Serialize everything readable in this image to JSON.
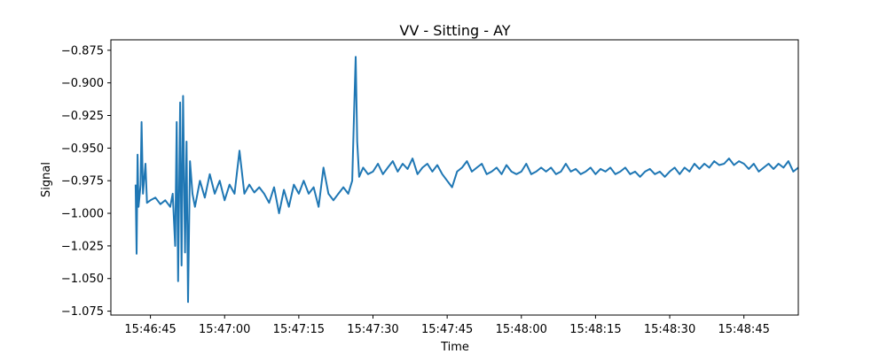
{
  "chart_data": {
    "type": "line",
    "title": "VV - Sitting - AY",
    "xlabel": "Time",
    "ylabel": "Signal",
    "xlim": [
      "15:46:37",
      "15:48:56"
    ],
    "ylim": [
      -1.078,
      -0.867
    ],
    "grid": false,
    "x_ticks": [
      "15:46:45",
      "15:47:00",
      "15:47:15",
      "15:47:30",
      "15:47:45",
      "15:48:00",
      "15:48:15",
      "15:48:30",
      "15:48:45"
    ],
    "y_ticks": [
      -0.875,
      -0.9,
      -0.925,
      -0.95,
      -0.975,
      -1.0,
      -1.025,
      -1.05,
      -1.075
    ],
    "y_tick_labels": [
      "−0.875",
      "−0.900",
      "−0.925",
      "−0.950",
      "−0.975",
      "−1.000",
      "−1.025",
      "−1.050",
      "−1.075"
    ],
    "series": [
      {
        "color": "#1f77b4",
        "points": [
          [
            "15:46:42.0",
            -0.978
          ],
          [
            "15:46:42.2",
            -1.031
          ],
          [
            "15:46:42.4",
            -0.955
          ],
          [
            "15:46:42.6",
            -0.995
          ],
          [
            "15:46:43.0",
            -0.978
          ],
          [
            "15:46:43.2",
            -0.93
          ],
          [
            "15:46:43.5",
            -0.985
          ],
          [
            "15:46:44.0",
            -0.962
          ],
          [
            "15:46:44.3",
            -0.992
          ],
          [
            "15:46:45.0",
            -0.99
          ],
          [
            "15:46:46.0",
            -0.988
          ],
          [
            "15:46:47.0",
            -0.993
          ],
          [
            "15:46:48.0",
            -0.99
          ],
          [
            "15:46:49.0",
            -0.995
          ],
          [
            "15:46:49.5",
            -0.985
          ],
          [
            "15:46:50.0",
            -1.025
          ],
          [
            "15:46:50.3",
            -0.93
          ],
          [
            "15:46:50.6",
            -1.052
          ],
          [
            "15:46:51.0",
            -0.915
          ],
          [
            "15:46:51.3",
            -1.04
          ],
          [
            "15:46:51.6",
            -0.91
          ],
          [
            "15:46:52.0",
            -1.03
          ],
          [
            "15:46:52.3",
            -0.945
          ],
          [
            "15:46:52.6",
            -1.068
          ],
          [
            "15:46:53.0",
            -0.96
          ],
          [
            "15:46:53.5",
            -0.985
          ],
          [
            "15:46:54.0",
            -0.995
          ],
          [
            "15:46:55.0",
            -0.975
          ],
          [
            "15:46:56.0",
            -0.988
          ],
          [
            "15:46:57.0",
            -0.97
          ],
          [
            "15:46:58.0",
            -0.985
          ],
          [
            "15:46:59.0",
            -0.975
          ],
          [
            "15:47:00.0",
            -0.99
          ],
          [
            "15:47:01.0",
            -0.978
          ],
          [
            "15:47:02.0",
            -0.985
          ],
          [
            "15:47:03.0",
            -0.952
          ],
          [
            "15:47:04.0",
            -0.985
          ],
          [
            "15:47:05.0",
            -0.978
          ],
          [
            "15:47:06.0",
            -0.984
          ],
          [
            "15:47:07.0",
            -0.98
          ],
          [
            "15:47:08.0",
            -0.985
          ],
          [
            "15:47:09.0",
            -0.992
          ],
          [
            "15:47:10.0",
            -0.98
          ],
          [
            "15:47:11.0",
            -1.0
          ],
          [
            "15:47:12.0",
            -0.982
          ],
          [
            "15:47:13.0",
            -0.995
          ],
          [
            "15:47:14.0",
            -0.978
          ],
          [
            "15:47:15.0",
            -0.985
          ],
          [
            "15:47:16.0",
            -0.975
          ],
          [
            "15:47:17.0",
            -0.985
          ],
          [
            "15:47:18.0",
            -0.98
          ],
          [
            "15:47:19.0",
            -0.995
          ],
          [
            "15:47:20.0",
            -0.965
          ],
          [
            "15:47:21.0",
            -0.985
          ],
          [
            "15:47:22.0",
            -0.99
          ],
          [
            "15:47:23.0",
            -0.985
          ],
          [
            "15:47:24.0",
            -0.98
          ],
          [
            "15:47:25.0",
            -0.985
          ],
          [
            "15:47:25.8",
            -0.975
          ],
          [
            "15:47:26.2",
            -0.92
          ],
          [
            "15:47:26.5",
            -0.88
          ],
          [
            "15:47:26.8",
            -0.945
          ],
          [
            "15:47:27.2",
            -0.972
          ],
          [
            "15:47:28.0",
            -0.965
          ],
          [
            "15:47:29.0",
            -0.97
          ],
          [
            "15:47:30.0",
            -0.968
          ],
          [
            "15:47:31.0",
            -0.962
          ],
          [
            "15:47:32.0",
            -0.97
          ],
          [
            "15:47:33.0",
            -0.965
          ],
          [
            "15:47:34.0",
            -0.96
          ],
          [
            "15:47:35.0",
            -0.968
          ],
          [
            "15:47:36.0",
            -0.962
          ],
          [
            "15:47:37.0",
            -0.966
          ],
          [
            "15:47:38.0",
            -0.958
          ],
          [
            "15:47:39.0",
            -0.97
          ],
          [
            "15:47:40.0",
            -0.965
          ],
          [
            "15:47:41.0",
            -0.962
          ],
          [
            "15:47:42.0",
            -0.968
          ],
          [
            "15:47:43.0",
            -0.963
          ],
          [
            "15:47:44.0",
            -0.97
          ],
          [
            "15:47:45.0",
            -0.975
          ],
          [
            "15:47:46.0",
            -0.98
          ],
          [
            "15:47:47.0",
            -0.968
          ],
          [
            "15:47:48.0",
            -0.965
          ],
          [
            "15:47:49.0",
            -0.96
          ],
          [
            "15:47:50.0",
            -0.968
          ],
          [
            "15:47:51.0",
            -0.965
          ],
          [
            "15:47:52.0",
            -0.962
          ],
          [
            "15:47:53.0",
            -0.97
          ],
          [
            "15:47:54.0",
            -0.968
          ],
          [
            "15:47:55.0",
            -0.965
          ],
          [
            "15:47:56.0",
            -0.97
          ],
          [
            "15:47:57.0",
            -0.963
          ],
          [
            "15:47:58.0",
            -0.968
          ],
          [
            "15:47:59.0",
            -0.97
          ],
          [
            "15:48:00.0",
            -0.968
          ],
          [
            "15:48:01.0",
            -0.962
          ],
          [
            "15:48:02.0",
            -0.97
          ],
          [
            "15:48:03.0",
            -0.968
          ],
          [
            "15:48:04.0",
            -0.965
          ],
          [
            "15:48:05.0",
            -0.968
          ],
          [
            "15:48:06.0",
            -0.965
          ],
          [
            "15:48:07.0",
            -0.97
          ],
          [
            "15:48:08.0",
            -0.968
          ],
          [
            "15:48:09.0",
            -0.962
          ],
          [
            "15:48:10.0",
            -0.968
          ],
          [
            "15:48:11.0",
            -0.966
          ],
          [
            "15:48:12.0",
            -0.97
          ],
          [
            "15:48:13.0",
            -0.968
          ],
          [
            "15:48:14.0",
            -0.965
          ],
          [
            "15:48:15.0",
            -0.97
          ],
          [
            "15:48:16.0",
            -0.966
          ],
          [
            "15:48:17.0",
            -0.968
          ],
          [
            "15:48:18.0",
            -0.965
          ],
          [
            "15:48:19.0",
            -0.97
          ],
          [
            "15:48:20.0",
            -0.968
          ],
          [
            "15:48:21.0",
            -0.965
          ],
          [
            "15:48:22.0",
            -0.97
          ],
          [
            "15:48:23.0",
            -0.968
          ],
          [
            "15:48:24.0",
            -0.972
          ],
          [
            "15:48:25.0",
            -0.968
          ],
          [
            "15:48:26.0",
            -0.966
          ],
          [
            "15:48:27.0",
            -0.97
          ],
          [
            "15:48:28.0",
            -0.968
          ],
          [
            "15:48:29.0",
            -0.972
          ],
          [
            "15:48:30.0",
            -0.968
          ],
          [
            "15:48:31.0",
            -0.965
          ],
          [
            "15:48:32.0",
            -0.97
          ],
          [
            "15:48:33.0",
            -0.965
          ],
          [
            "15:48:34.0",
            -0.968
          ],
          [
            "15:48:35.0",
            -0.962
          ],
          [
            "15:48:36.0",
            -0.966
          ],
          [
            "15:48:37.0",
            -0.962
          ],
          [
            "15:48:38.0",
            -0.965
          ],
          [
            "15:48:39.0",
            -0.96
          ],
          [
            "15:48:40.0",
            -0.963
          ],
          [
            "15:48:41.0",
            -0.962
          ],
          [
            "15:48:42.0",
            -0.958
          ],
          [
            "15:48:43.0",
            -0.963
          ],
          [
            "15:48:44.0",
            -0.96
          ],
          [
            "15:48:45.0",
            -0.962
          ],
          [
            "15:48:46.0",
            -0.966
          ],
          [
            "15:48:47.0",
            -0.962
          ],
          [
            "15:48:48.0",
            -0.968
          ],
          [
            "15:48:49.0",
            -0.965
          ],
          [
            "15:48:50.0",
            -0.962
          ],
          [
            "15:48:51.0",
            -0.966
          ],
          [
            "15:48:52.0",
            -0.962
          ],
          [
            "15:48:53.0",
            -0.965
          ],
          [
            "15:48:54.0",
            -0.96
          ],
          [
            "15:48:55.0",
            -0.968
          ],
          [
            "15:48:56.0",
            -0.965
          ]
        ]
      }
    ]
  }
}
